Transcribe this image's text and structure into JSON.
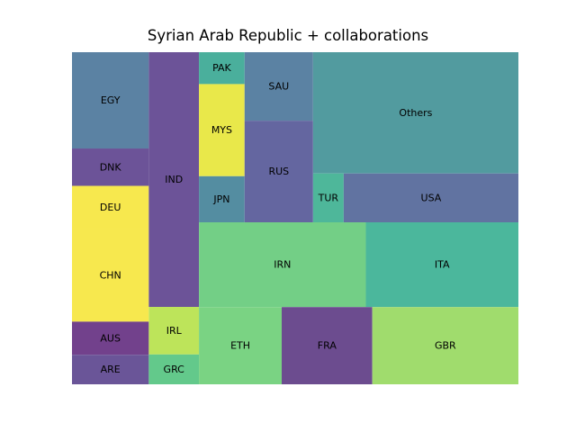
{
  "chart_data": {
    "type": "treemap",
    "title": "Syrian Arab Republic + collaborations",
    "items": [
      {
        "label": "EGY",
        "value": 9.15,
        "color": "#5b82a3"
      },
      {
        "label": "DNK",
        "value": 3.55,
        "color": "#6c5398"
      },
      {
        "label": "DEU",
        "value": 4.1,
        "color": "#f7e84e"
      },
      {
        "label": "CHN",
        "value": 8.8,
        "color": "#f7e84e"
      },
      {
        "label": "AUS",
        "value": 3.15,
        "color": "#72418c"
      },
      {
        "label": "ARE",
        "value": 2.8,
        "color": "#6a5598"
      },
      {
        "label": "IND",
        "value": 15.8,
        "color": "#6c5398"
      },
      {
        "label": "IRL",
        "value": 2.95,
        "color": "#bde45a"
      },
      {
        "label": "GRC",
        "value": 1.85,
        "color": "#63c98b"
      },
      {
        "label": "PAK",
        "value": 1.8,
        "color": "#4aaf9c"
      },
      {
        "label": "MYS",
        "value": 5.2,
        "color": "#e9e84a"
      },
      {
        "label": "JPN",
        "value": 2.6,
        "color": "#548da1"
      },
      {
        "label": "SAU",
        "value": 5.8,
        "color": "#5b82a3"
      },
      {
        "label": "RUS",
        "value": 8.6,
        "color": "#6466a0"
      },
      {
        "label": "TUR",
        "value": 1.85,
        "color": "#4eb79a"
      },
      {
        "label": "USA",
        "value": 10.55,
        "color": "#6173a1"
      },
      {
        "label": "Others",
        "value": 30.8,
        "color": "#529b9f"
      },
      {
        "label": "IRN",
        "value": 17.5,
        "color": "#73cf86"
      },
      {
        "label": "ITA",
        "value": 16.0,
        "color": "#4bb79c"
      },
      {
        "label": "ETH",
        "value": 7.9,
        "color": "#7ad383"
      },
      {
        "label": "FRA",
        "value": 8.65,
        "color": "#6c4c8f"
      },
      {
        "label": "GBR",
        "value": 13.95,
        "color": "#a0dc6d"
      }
    ]
  }
}
